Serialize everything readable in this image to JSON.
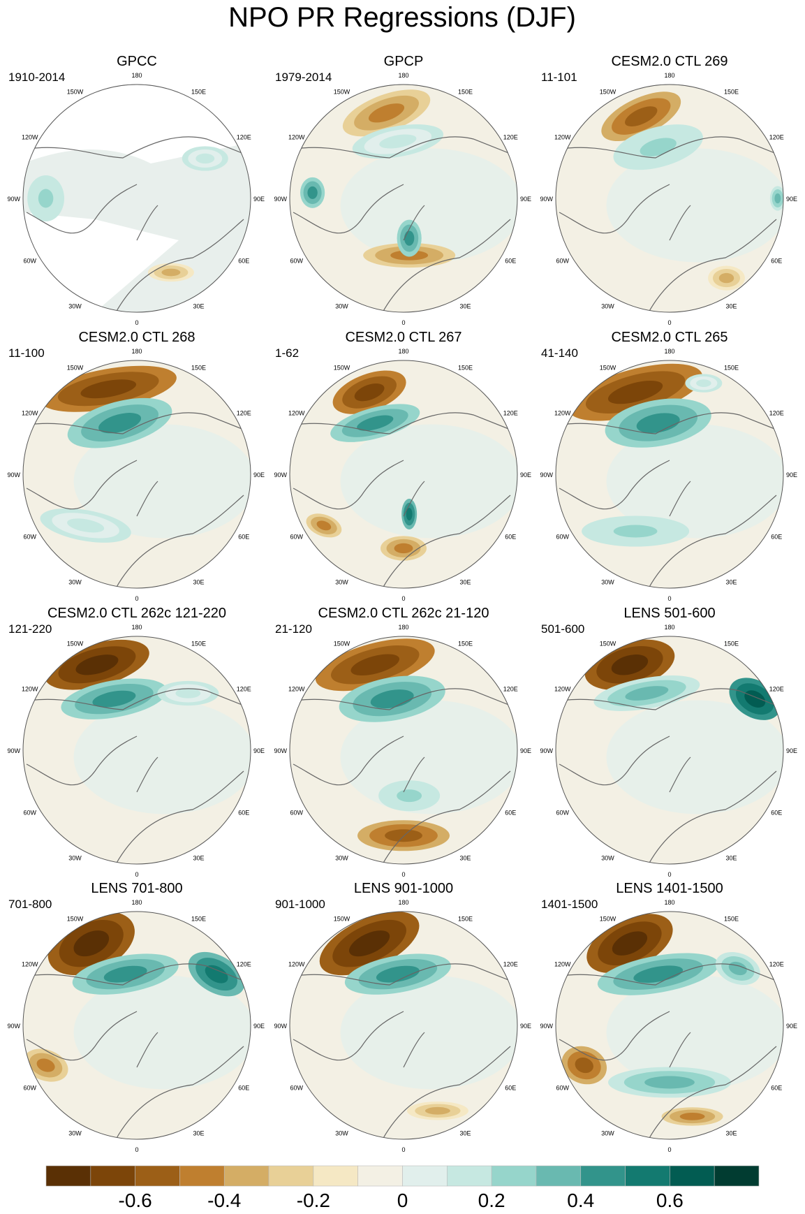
{
  "chart_data": {
    "type": "heatmap",
    "title": "NPO PR Regressions (DJF)",
    "projection": "north polar stereographic",
    "longitude_labels": [
      "180",
      "150E",
      "120E",
      "90E",
      "60E",
      "30E",
      "0",
      "30W",
      "60W",
      "90W",
      "120W",
      "150W"
    ],
    "panels": [
      {
        "title": "GPCC",
        "period": "1910-2014"
      },
      {
        "title": "GPCP",
        "period": "1979-2014"
      },
      {
        "title": "CESM2.0 CTL 269",
        "period": "11-101"
      },
      {
        "title": "CESM2.0 CTL 268",
        "period": "11-100"
      },
      {
        "title": "CESM2.0 CTL 267",
        "period": "1-62"
      },
      {
        "title": "CESM2.0 CTL 265",
        "period": "41-140"
      },
      {
        "title": "CESM2.0 CTL 262c 121-220",
        "period": "121-220"
      },
      {
        "title": "CESM2.0 CTL 262c 21-120",
        "period": "21-120"
      },
      {
        "title": "LENS 501-600",
        "period": "501-600"
      },
      {
        "title": "LENS 701-800",
        "period": "701-800"
      },
      {
        "title": "LENS 901-1000",
        "period": "901-1000"
      },
      {
        "title": "LENS 1401-1500",
        "period": "1401-1500"
      }
    ],
    "colorbar": {
      "levels": [
        -0.8,
        -0.7,
        -0.6,
        -0.5,
        -0.4,
        -0.3,
        -0.2,
        -0.1,
        0,
        0.1,
        0.2,
        0.3,
        0.4,
        0.5,
        0.6,
        0.7,
        0.8
      ],
      "colors": [
        "#5a3005",
        "#7c4509",
        "#9c5f17",
        "#bf7f2f",
        "#d4ad65",
        "#e8d097",
        "#f5e8c4",
        "#f3f0e4",
        "#e1efec",
        "#c6e8e1",
        "#96d5cb",
        "#69b9b0",
        "#32948b",
        "#137a70",
        "#025c52",
        "#013c31"
      ],
      "tick_labels": [
        "-0.6",
        "-0.4",
        "-0.2",
        "0",
        "0.2",
        "0.4",
        "0.6"
      ],
      "tick_values": [
        -0.6,
        -0.4,
        -0.2,
        0,
        0.2,
        0.4,
        0.6
      ]
    }
  }
}
